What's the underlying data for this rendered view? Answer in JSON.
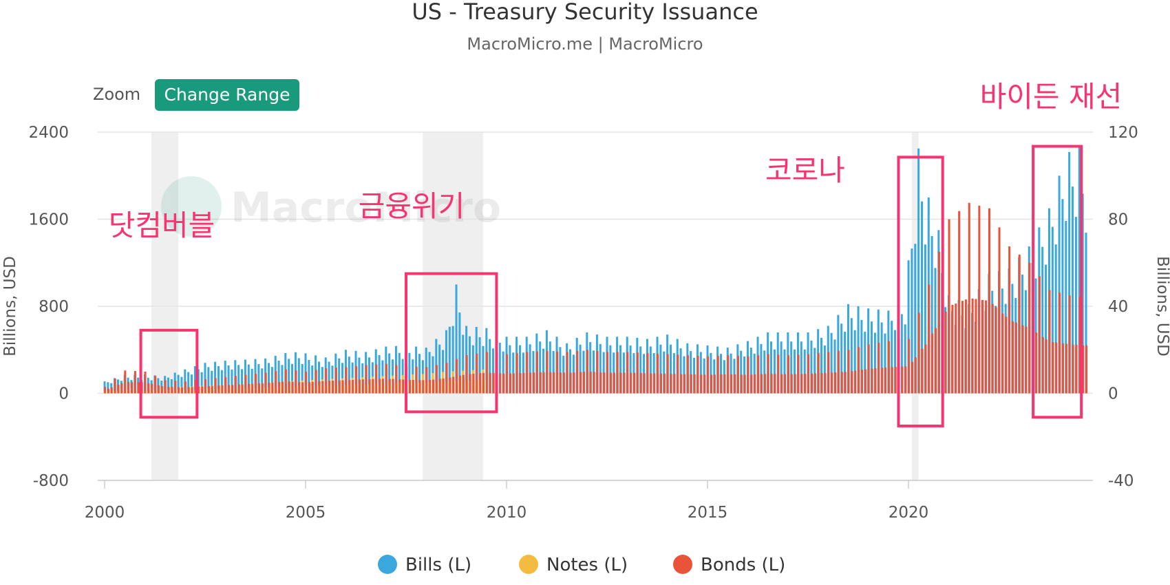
{
  "chart": {
    "title": "US - Treasury Security Issuance",
    "subtitle": "MacroMicro.me | MacroMicro",
    "watermark": "MacroMicro",
    "zoom_label": "Zoom",
    "range_button": "Change Range"
  },
  "colors": {
    "bills": "#3aa8dc",
    "notes": "#f3bb3f",
    "bonds": "#e8533a",
    "annotation": "#f7346f",
    "button": "#1a9a7c",
    "recession": "#efefef",
    "grid": "#e3e3e3"
  },
  "annotations": [
    {
      "label": "닷컴버블",
      "x0": 2000.9,
      "x1": 2002.3,
      "y0": 580,
      "y1": -220
    },
    {
      "label": "금융위기",
      "x0": 2007.5,
      "x1": 2009.75,
      "y0": 1100,
      "y1": -170
    },
    {
      "label": "코로나",
      "x0": 2019.75,
      "x1": 2020.85,
      "y0": 2170,
      "y1": -300
    },
    {
      "label": "바이든 재선",
      "x0": 2023.1,
      "x1": 2024.3,
      "y0": 2270,
      "y1": -220
    }
  ],
  "chart_data": {
    "type": "bar",
    "stacked": false,
    "x": {
      "type": "date",
      "ticks": [
        "2000",
        "2005",
        "2010",
        "2015",
        "2020"
      ],
      "min": "2000-01",
      "max": "2024-06"
    },
    "y_left": {
      "label": "Billions, USD",
      "ticks": [
        "2400",
        "1600",
        "800",
        "0",
        "-800"
      ],
      "min": -800,
      "max": 2400
    },
    "y_right": {
      "label": "Billions, USD",
      "ticks": [
        "120",
        "80",
        "40",
        "0",
        "-40"
      ],
      "min": -40,
      "max": 120
    },
    "legend": {
      "position": "bottom-center",
      "items": [
        "Bills (L)",
        "Notes (L)",
        "Bonds (L)"
      ]
    },
    "recession_bands": [
      [
        "2001-03",
        "2001-11"
      ],
      [
        "2007-12",
        "2009-06"
      ],
      [
        "2020-02",
        "2020-04"
      ]
    ],
    "series": [
      {
        "name": "Bills (L)",
        "key": "bills",
        "points": [
          [
            "2000-01",
            110
          ],
          [
            "2000-07",
            170
          ],
          [
            "2001-01",
            170
          ],
          [
            "2001-07",
            160
          ],
          [
            "2002-01",
            220
          ],
          [
            "2002-07",
            280
          ],
          [
            "2003-01",
            300
          ],
          [
            "2003-07",
            310
          ],
          [
            "2004-01",
            320
          ],
          [
            "2004-07",
            370
          ],
          [
            "2004-11",
            380
          ],
          [
            "2005-07",
            330
          ],
          [
            "2006-01",
            400
          ],
          [
            "2006-07",
            380
          ],
          [
            "2007-01",
            430
          ],
          [
            "2007-07",
            440
          ],
          [
            "2008-01",
            420
          ],
          [
            "2008-07",
            580
          ],
          [
            "2008-10",
            1000
          ],
          [
            "2009-01",
            620
          ],
          [
            "2009-07",
            600
          ],
          [
            "2010-01",
            520
          ],
          [
            "2010-07",
            520
          ],
          [
            "2011-01",
            580
          ],
          [
            "2011-07",
            460
          ],
          [
            "2012-01",
            560
          ],
          [
            "2012-07",
            520
          ],
          [
            "2013-01",
            520
          ],
          [
            "2013-07",
            500
          ],
          [
            "2014-01",
            540
          ],
          [
            "2014-07",
            460
          ],
          [
            "2015-01",
            440
          ],
          [
            "2015-07",
            420
          ],
          [
            "2016-01",
            480
          ],
          [
            "2016-07",
            560
          ],
          [
            "2017-01",
            560
          ],
          [
            "2017-07",
            560
          ],
          [
            "2018-01",
            620
          ],
          [
            "2018-07",
            820
          ],
          [
            "2019-01",
            780
          ],
          [
            "2019-07",
            760
          ],
          [
            "2019-12",
            880
          ],
          [
            "2020-04",
            2250
          ],
          [
            "2020-06",
            1900
          ],
          [
            "2020-10",
            1500
          ],
          [
            "2021-01",
            900
          ],
          [
            "2021-07",
            820
          ],
          [
            "2022-01",
            1100
          ],
          [
            "2022-07",
            1150
          ],
          [
            "2023-01",
            1350
          ],
          [
            "2023-07",
            1700
          ],
          [
            "2023-12",
            2200
          ],
          [
            "2024-04",
            2270
          ],
          [
            "2024-06",
            2050
          ]
        ]
      },
      {
        "name": "Notes (L)",
        "key": "notes",
        "points": [
          [
            "2000-01",
            40
          ],
          [
            "2000-07",
            50
          ],
          [
            "2001-01",
            45
          ],
          [
            "2001-07",
            55
          ],
          [
            "2002-01",
            60
          ],
          [
            "2002-07",
            70
          ],
          [
            "2003-01",
            75
          ],
          [
            "2003-07",
            85
          ],
          [
            "2004-01",
            95
          ],
          [
            "2004-07",
            110
          ],
          [
            "2005-01",
            120
          ],
          [
            "2005-07",
            130
          ],
          [
            "2006-01",
            140
          ],
          [
            "2006-07",
            150
          ],
          [
            "2007-01",
            160
          ],
          [
            "2007-07",
            170
          ],
          [
            "2008-01",
            180
          ],
          [
            "2008-07",
            200
          ],
          [
            "2009-01",
            210
          ],
          [
            "2009-07",
            220
          ]
        ]
      },
      {
        "name": "Bonds (L)",
        "key": "bonds",
        "points": [
          [
            "2000-01",
            60
          ],
          [
            "2000-07",
            210
          ],
          [
            "2001-01",
            200
          ],
          [
            "2001-07",
            120
          ],
          [
            "2002-01",
            110
          ],
          [
            "2002-07",
            130
          ],
          [
            "2003-01",
            150
          ],
          [
            "2003-07",
            170
          ],
          [
            "2004-01",
            190
          ],
          [
            "2004-07",
            220
          ],
          [
            "2005-01",
            200
          ],
          [
            "2005-07",
            230
          ],
          [
            "2006-01",
            240
          ],
          [
            "2006-07",
            260
          ],
          [
            "2007-01",
            270
          ],
          [
            "2007-07",
            250
          ],
          [
            "2008-01",
            240
          ],
          [
            "2008-07",
            280
          ],
          [
            "2009-01",
            350
          ],
          [
            "2009-07",
            380
          ],
          [
            "2010-01",
            360
          ],
          [
            "2010-07",
            380
          ],
          [
            "2011-01",
            390
          ],
          [
            "2011-07",
            380
          ],
          [
            "2012-01",
            400
          ],
          [
            "2012-07",
            380
          ],
          [
            "2013-01",
            380
          ],
          [
            "2013-07",
            370
          ],
          [
            "2014-01",
            360
          ],
          [
            "2014-07",
            350
          ],
          [
            "2015-01",
            340
          ],
          [
            "2015-07",
            350
          ],
          [
            "2016-01",
            340
          ],
          [
            "2016-07",
            360
          ],
          [
            "2017-01",
            350
          ],
          [
            "2017-07",
            360
          ],
          [
            "2018-01",
            380
          ],
          [
            "2018-07",
            400
          ],
          [
            "2019-01",
            450
          ],
          [
            "2019-07",
            480
          ],
          [
            "2020-01",
            500
          ],
          [
            "2020-06",
            900
          ],
          [
            "2020-10",
            1300
          ],
          [
            "2021-01",
            1600
          ],
          [
            "2021-07",
            1750
          ],
          [
            "2022-01",
            1700
          ],
          [
            "2022-07",
            1350
          ],
          [
            "2023-01",
            1200
          ],
          [
            "2023-07",
            950
          ],
          [
            "2024-01",
            900
          ],
          [
            "2024-06",
            880
          ]
        ]
      }
    ]
  }
}
